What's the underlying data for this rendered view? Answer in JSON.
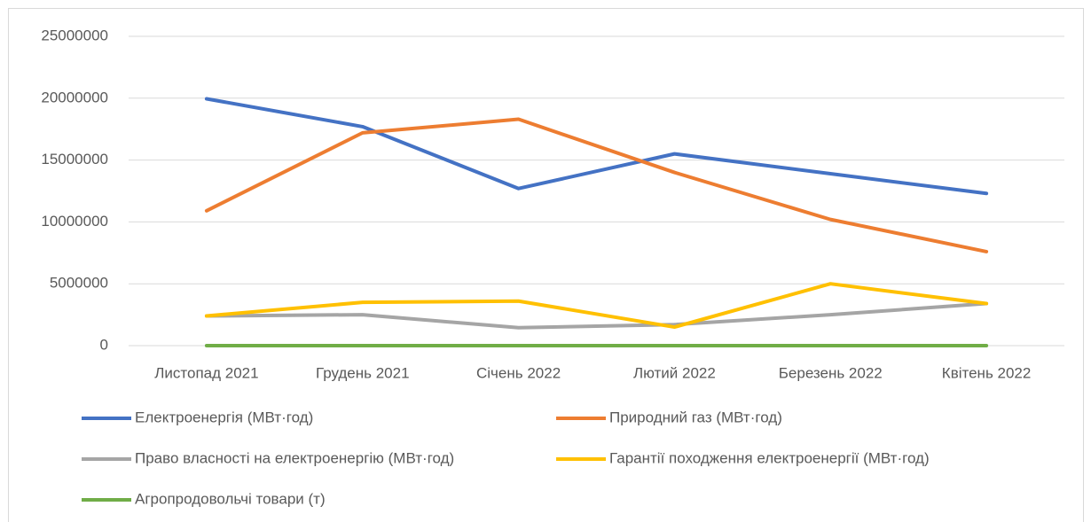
{
  "chart_data": {
    "type": "line",
    "categories": [
      "Листопад 2021",
      "Грудень 2021",
      "Січень 2022",
      "Лютий 2022",
      "Березень 2022",
      "Квітень 2022"
    ],
    "series": [
      {
        "name": "Електроенергія (МВт·год)",
        "color": "#4472c4",
        "values": [
          19950000,
          17700000,
          12700000,
          15500000,
          13900000,
          12300000
        ]
      },
      {
        "name": "Природний газ (МВт·год)",
        "color": "#ed7d31",
        "values": [
          10900000,
          17200000,
          18300000,
          14000000,
          10200000,
          7600000
        ]
      },
      {
        "name": "Право власності на електроенергію (МВт·год)",
        "color": "#a5a5a5",
        "values": [
          2400000,
          2500000,
          1450000,
          1700000,
          2500000,
          3400000
        ]
      },
      {
        "name": "Гарантії походження електроенергії (МВт·год)",
        "color": "#ffc000",
        "values": [
          2400000,
          3500000,
          3600000,
          1500000,
          5000000,
          3400000
        ]
      },
      {
        "name": "Агропродовольчі товари (т)",
        "color": "#70ad47",
        "values": [
          0,
          0,
          0,
          0,
          0,
          0
        ]
      }
    ],
    "ylim": [
      0,
      25000000
    ],
    "yticks": [
      0,
      5000000,
      10000000,
      15000000,
      20000000,
      25000000
    ],
    "grid": true,
    "legend": "bottom"
  }
}
